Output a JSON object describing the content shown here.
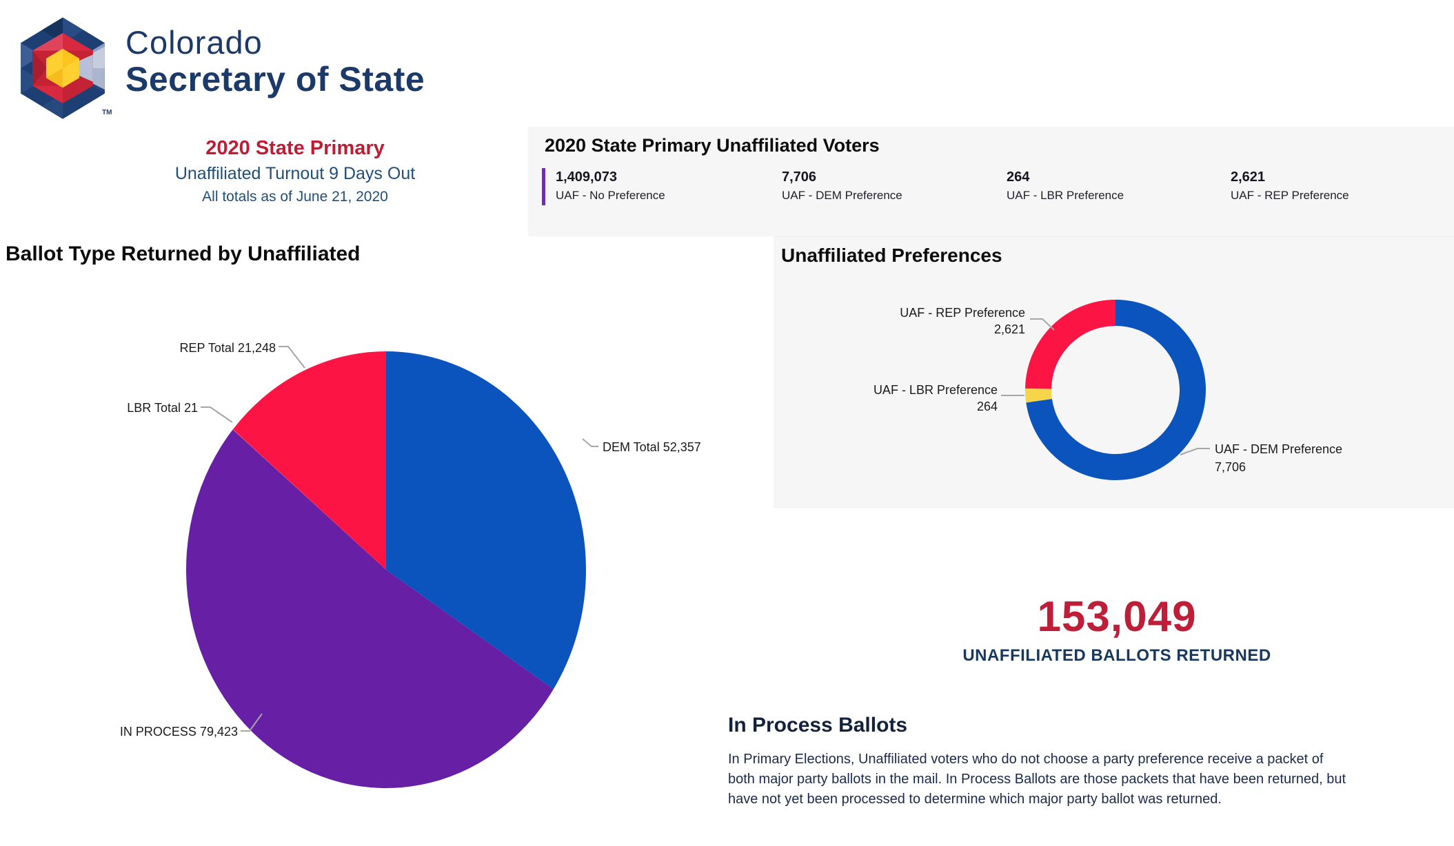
{
  "header": {
    "brand_line1": "Colorado",
    "brand_line2": "Secretary of State",
    "trademark": "TM",
    "subtitle_line1": "2020 State Primary",
    "subtitle_line2": "Unaffiliated Turnout 9 Days Out",
    "subtitle_line3": "All totals as of June 21, 2020",
    "brand_color": "#1c3a69",
    "subtitle1_color": "#bf1c34",
    "subtitle_color": "#1f4e79"
  },
  "stats_panel": {
    "title": "2020 State Primary Unaffiliated Voters",
    "accent_color": "#7030a0",
    "items": [
      {
        "value": "1,409,073",
        "label": "UAF - No Preference"
      },
      {
        "value": "7,706",
        "label": "UAF - DEM Preference"
      },
      {
        "value": "264",
        "label": "UAF - LBR Preference"
      },
      {
        "value": "2,621",
        "label": "UAF - REP Preference"
      }
    ]
  },
  "ballot_section": {
    "title": "Ballot Type Returned by Unaffiliated"
  },
  "preferences_section": {
    "title": "Unaffiliated Preferences"
  },
  "returned_summary": {
    "value": "153,049",
    "caption": "UNAFFILIATED BALLOTS RETURNED",
    "value_color": "#bf1e38",
    "caption_color": "#17375e"
  },
  "in_process": {
    "title": "In Process Ballots",
    "body_lines": [
      "In Primary Elections, Unaffiliated voters who do not choose a party preference receive a packet of",
      "both major party ballots in the mail. In Process Ballots are those packets that have been returned, but",
      "have not yet been processed to determine which major party ballot was returned."
    ]
  },
  "chart_data": [
    {
      "id": "ballot_pie",
      "type": "pie",
      "title": "Ballot Type Returned by Unaffiliated",
      "labels": [
        "DEM Total",
        "IN PROCESS",
        "LBR Total",
        "REP Total"
      ],
      "values": [
        52357,
        79423,
        21,
        21248
      ],
      "display_labels": [
        "DEM Total 52,357",
        "IN PROCESS 79,423",
        "LBR Total 21",
        "REP Total 21,248"
      ],
      "colors": [
        "#0b53bd",
        "#671fa6",
        "#f7d54a",
        "#fc1544"
      ],
      "total": 153049,
      "start_angle_deg": 0,
      "clockwise": true,
      "legend_position": "callout-labels",
      "label_text_color": "#1a1a1a",
      "leader_line_color": "#a6a6a6"
    },
    {
      "id": "preferences_donut",
      "type": "pie",
      "subtype": "donut",
      "title": "Unaffiliated Preferences",
      "labels": [
        "UAF - DEM Preference",
        "UAF - LBR Preference",
        "UAF - REP Preference"
      ],
      "values": [
        7706,
        264,
        2621
      ],
      "display_values": [
        "7,706",
        "264",
        "2,621"
      ],
      "colors": [
        "#0b53bd",
        "#f7d54a",
        "#fc1544"
      ],
      "total": 10591,
      "start_angle_deg": 0,
      "clockwise": true,
      "inner_radius_ratio": 0.71,
      "legend_position": "callout-labels",
      "label_text_color": "#1a1a1a",
      "leader_line_color": "#a6a6a6"
    }
  ]
}
